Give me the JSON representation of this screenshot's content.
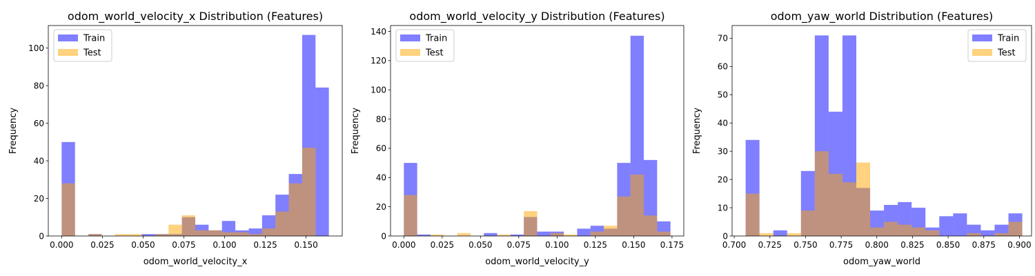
{
  "chart_data": [
    {
      "type": "histogram",
      "title": "odom_world_velocity_x Distribution (Features)",
      "xlabel": "odom_world_velocity_x",
      "ylabel": "Frequency",
      "xlim": [
        -0.0082,
        0.1722
      ],
      "ylim": [
        0,
        112
      ],
      "xticks": [
        0.0,
        0.025,
        0.05,
        0.075,
        0.1,
        0.125,
        0.15
      ],
      "xtick_labels": [
        "0.000",
        "0.025",
        "0.050",
        "0.075",
        "0.100",
        "0.125",
        "0.150"
      ],
      "yticks": [
        0,
        20,
        40,
        60,
        80,
        100
      ],
      "ytick_labels": [
        "0",
        "20",
        "40",
        "60",
        "80",
        "100"
      ],
      "legend_position": "upper left",
      "series": [
        {
          "name": "Train",
          "color": "#0000ff",
          "alpha": 0.5,
          "bin_edges": [
            0.0,
            0.0082,
            0.0164,
            0.0246,
            0.0328,
            0.041,
            0.0492,
            0.0574,
            0.0656,
            0.0738,
            0.082,
            0.0902,
            0.0984,
            0.1066,
            0.1148,
            0.123,
            0.1312,
            0.1394,
            0.1476,
            0.1558,
            0.164
          ],
          "counts": [
            50,
            0,
            1,
            0,
            0,
            0,
            1,
            1,
            1,
            10,
            6,
            3,
            8,
            3,
            4,
            11,
            22,
            33,
            107,
            79
          ]
        },
        {
          "name": "Test",
          "color": "#ffa500",
          "alpha": 0.5,
          "bin_edges": [
            0.0,
            0.0082,
            0.0164,
            0.0246,
            0.0328,
            0.041,
            0.0492,
            0.0574,
            0.0656,
            0.0738,
            0.082,
            0.0902,
            0.0984,
            0.1066,
            0.1148,
            0.123,
            0.1312,
            0.1394,
            0.1476,
            0.1558
          ],
          "counts": [
            28,
            0,
            1,
            0,
            1,
            1,
            0,
            1,
            6,
            11,
            3,
            3,
            2,
            2,
            1,
            4,
            13,
            28,
            47
          ]
        }
      ]
    },
    {
      "type": "histogram",
      "title": "odom_world_velocity_y Distribution (Features)",
      "xlabel": "odom_world_velocity_y",
      "ylabel": "Frequency",
      "xlim": [
        -0.0087,
        0.1827
      ],
      "ylim": [
        0,
        144
      ],
      "xticks": [
        0.0,
        0.025,
        0.05,
        0.075,
        0.1,
        0.125,
        0.15,
        0.175
      ],
      "xtick_labels": [
        "0.000",
        "0.025",
        "0.050",
        "0.075",
        "0.100",
        "0.125",
        "0.150",
        "0.175"
      ],
      "yticks": [
        0,
        20,
        40,
        60,
        80,
        100,
        120,
        140
      ],
      "ytick_labels": [
        "0",
        "20",
        "40",
        "60",
        "80",
        "100",
        "120",
        "140"
      ],
      "legend_position": "upper left",
      "series": [
        {
          "name": "Train",
          "color": "#0000ff",
          "alpha": 0.5,
          "bin_edges": [
            0.0,
            0.0087,
            0.0174,
            0.0261,
            0.0348,
            0.0435,
            0.0522,
            0.0609,
            0.0696,
            0.0783,
            0.087,
            0.0957,
            0.1044,
            0.1131,
            0.1218,
            0.1305,
            0.1392,
            0.1479,
            0.1566,
            0.1653,
            0.174
          ],
          "counts": [
            50,
            1,
            0,
            0,
            0,
            0,
            2,
            0,
            1,
            13,
            3,
            3,
            0,
            5,
            7,
            5,
            50,
            137,
            52,
            10
          ]
        },
        {
          "name": "Test",
          "color": "#ffa500",
          "alpha": 0.5,
          "bin_edges": [
            0.0,
            0.0087,
            0.0174,
            0.0261,
            0.0348,
            0.0435,
            0.0522,
            0.0609,
            0.0696,
            0.0783,
            0.087,
            0.0957,
            0.1044,
            0.1131,
            0.1218,
            0.1305,
            0.1392,
            0.1479,
            0.1566,
            0.1653,
            0.174
          ],
          "counts": [
            28,
            0,
            1,
            0,
            2,
            0,
            0,
            1,
            0,
            17,
            0,
            2,
            1,
            0,
            3,
            7,
            27,
            42,
            14,
            3
          ]
        }
      ]
    },
    {
      "type": "histogram",
      "title": "odom_yaw_world Distribution (Features)",
      "xlabel": "odom_yaw_world",
      "ylabel": "Frequency",
      "xlim": [
        0.6985,
        0.9085
      ],
      "ylim": [
        0,
        74.5
      ],
      "xticks": [
        0.7,
        0.725,
        0.75,
        0.775,
        0.8,
        0.825,
        0.85,
        0.875,
        0.9
      ],
      "xtick_labels": [
        "0.700",
        "0.725",
        "0.750",
        "0.775",
        "0.800",
        "0.825",
        "0.850",
        "0.875",
        "0.900"
      ],
      "yticks": [
        0,
        10,
        20,
        30,
        40,
        50,
        60,
        70
      ],
      "ytick_labels": [
        "0",
        "10",
        "20",
        "30",
        "40",
        "50",
        "60",
        "70"
      ],
      "legend_position": "upper right",
      "series": [
        {
          "name": "Train",
          "color": "#0000ff",
          "alpha": 0.5,
          "bin_edges": [
            0.708,
            0.7177,
            0.7274,
            0.7371,
            0.7468,
            0.7565,
            0.7662,
            0.7759,
            0.7856,
            0.7953,
            0.805,
            0.8147,
            0.8244,
            0.8341,
            0.8438,
            0.8535,
            0.8632,
            0.8729,
            0.8826,
            0.8923,
            0.902
          ],
          "counts": [
            34,
            0,
            2,
            0,
            23,
            71,
            44,
            71,
            17,
            9,
            11,
            12,
            10,
            3,
            7,
            8,
            4,
            2,
            4,
            8
          ]
        },
        {
          "name": "Test",
          "color": "#ffa500",
          "alpha": 0.5,
          "bin_edges": [
            0.708,
            0.7177,
            0.7274,
            0.7371,
            0.7468,
            0.7565,
            0.7662,
            0.7759,
            0.7856,
            0.7953,
            0.805,
            0.8147,
            0.8244,
            0.8341,
            0.8438,
            0.8535,
            0.8632,
            0.8729,
            0.8826,
            0.8923,
            0.902
          ],
          "counts": [
            15,
            1,
            0,
            1,
            9,
            30,
            22,
            19,
            26,
            3,
            5,
            4,
            3,
            2,
            0,
            0,
            1,
            0,
            1,
            5
          ]
        }
      ]
    }
  ]
}
